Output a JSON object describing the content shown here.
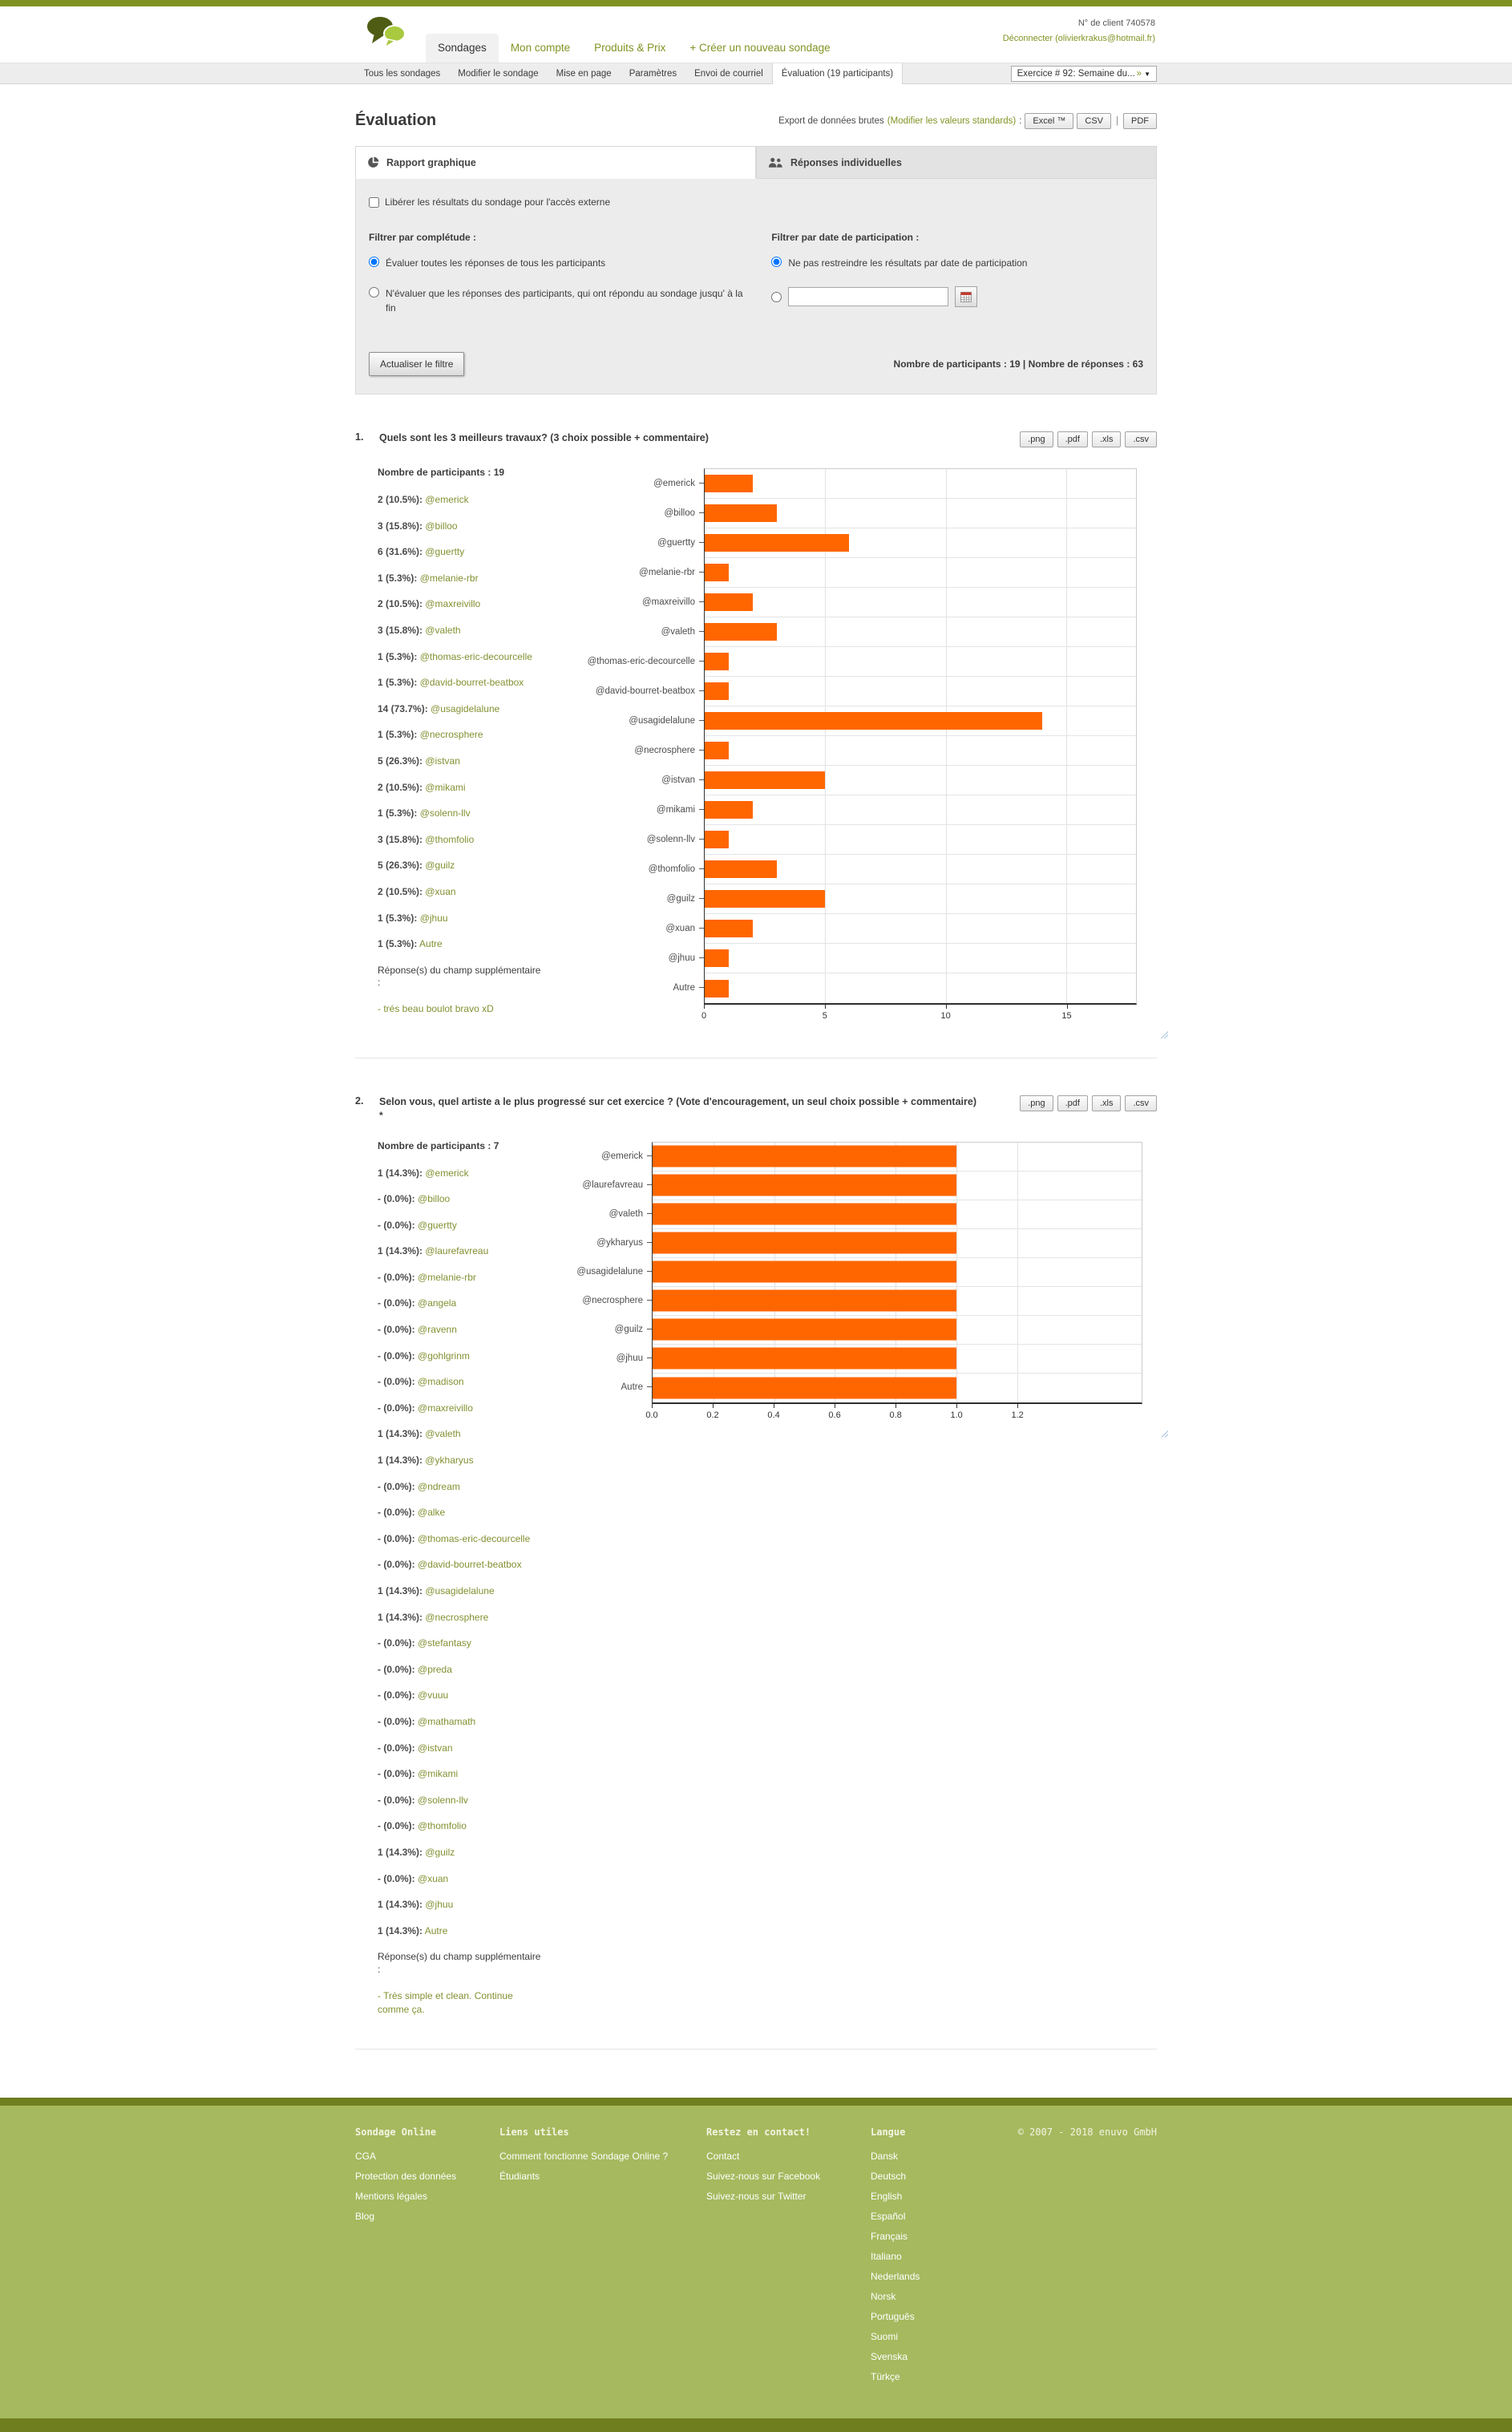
{
  "header": {
    "client_number": "N° de client 740578",
    "logout": "Déconnecter (olivierkrakus@hotmail.fr)",
    "nav": [
      {
        "label": "Sondages",
        "active": true
      },
      {
        "label": "Mon compte",
        "active": false
      },
      {
        "label": "Produits & Prix",
        "active": false
      },
      {
        "label": "+ Créer un nouveau sondage",
        "active": false
      }
    ]
  },
  "subnav": {
    "tabs": [
      "Tous les sondages",
      "Modifier le sondage",
      "Mise en page",
      "Paramètres",
      "Envoi de courriel",
      "Évaluation (19 participants)"
    ],
    "active_tab": "Évaluation (19 participants)",
    "survey_select_label": "Exercice # 92: Semaine du...",
    "survey_select_more": "»"
  },
  "page": {
    "title": "Évaluation",
    "export_label": "Export de données brutes",
    "export_link": "(Modifier les valeurs standards)",
    "export_colon": ":",
    "export_excel": "Excel ™",
    "export_csv": "CSV",
    "export_sep": "|",
    "export_pdf": "PDF"
  },
  "report_tabs": {
    "graph": "Rapport graphique",
    "individual": "Réponses individuelles"
  },
  "filters": {
    "release_checkbox": "Libérer les résultats du sondage pour l'accès externe",
    "completeness_label": "Filtrer par complétude :",
    "completeness_option1": "Évaluer toutes les réponses de tous les participants",
    "completeness_option2": "N'évaluer que les réponses des participants, qui ont répondu au sondage jusqu' à la fin",
    "date_label": "Filtrer par date de participation :",
    "date_option1": "Ne pas restreindre les résultats par date de participation",
    "refresh_button": "Actualiser le filtre",
    "stats": "Nombre de participants : 19 | Nombre de réponses : 63"
  },
  "questions": [
    {
      "number": "1.",
      "title": "Quels sont les 3 meilleurs travaux? (3 choix possible + commentaire)",
      "star": "",
      "participants": "Nombre de participants : 19",
      "export_buttons": [
        ".png",
        ".pdf",
        ".xls",
        ".csv"
      ],
      "stats": [
        {
          "count": "2 (10.5%):",
          "name": "@emerick"
        },
        {
          "count": "3 (15.8%):",
          "name": "@billoo"
        },
        {
          "count": "6 (31.6%):",
          "name": "@guertty"
        },
        {
          "count": "1 (5.3%):",
          "name": "@melanie-rbr"
        },
        {
          "count": "2 (10.5%):",
          "name": "@maxreivillo"
        },
        {
          "count": "3 (15.8%):",
          "name": "@valeth"
        },
        {
          "count": "1 (5.3%):",
          "name": "@thomas-eric-decourcelle"
        },
        {
          "count": "1 (5.3%):",
          "name": "@david-bourret-beatbox"
        },
        {
          "count": "14 (73.7%):",
          "name": "@usagidelalune"
        },
        {
          "count": "1 (5.3%):",
          "name": "@necrosphere"
        },
        {
          "count": "5 (26.3%):",
          "name": "@istvan"
        },
        {
          "count": "2 (10.5%):",
          "name": "@mikami"
        },
        {
          "count": "1 (5.3%):",
          "name": "@solenn-llv"
        },
        {
          "count": "3 (15.8%):",
          "name": "@thomfolio"
        },
        {
          "count": "5 (26.3%):",
          "name": "@guilz"
        },
        {
          "count": "2 (10.5%):",
          "name": "@xuan"
        },
        {
          "count": "1 (5.3%):",
          "name": "@jhuu"
        },
        {
          "count": "1 (5.3%):",
          "name": "Autre"
        }
      ],
      "supplement_label": "Réponse(s) du champ supplémentaire\n:",
      "supplement_answer": "- trés beau boulot bravo xD"
    },
    {
      "number": "2.",
      "title": "Selon vous, quel artiste a le plus progressé sur cet exercice ? (Vote d'encouragement, un seul choix possible + commentaire)",
      "star": "*",
      "participants": "Nombre de participants : 7",
      "export_buttons": [
        ".png",
        ".pdf",
        ".xls",
        ".csv"
      ],
      "stats": [
        {
          "count": "1 (14.3%):",
          "name": "@emerick"
        },
        {
          "count": "- (0.0%):",
          "name": "@billoo"
        },
        {
          "count": "- (0.0%):",
          "name": "@guertty"
        },
        {
          "count": "1 (14.3%):",
          "name": "@laurefavreau"
        },
        {
          "count": "- (0.0%):",
          "name": "@melanie-rbr"
        },
        {
          "count": "- (0.0%):",
          "name": "@angela"
        },
        {
          "count": "- (0.0%):",
          "name": "@ravenn"
        },
        {
          "count": "- (0.0%):",
          "name": "@gohlgrinm"
        },
        {
          "count": "- (0.0%):",
          "name": "@madison"
        },
        {
          "count": "- (0.0%):",
          "name": "@maxreivillo"
        },
        {
          "count": "1 (14.3%):",
          "name": "@valeth"
        },
        {
          "count": "1 (14.3%):",
          "name": "@ykharyus"
        },
        {
          "count": "- (0.0%):",
          "name": "@ndream"
        },
        {
          "count": "- (0.0%):",
          "name": "@alke"
        },
        {
          "count": "- (0.0%):",
          "name": "@thomas-eric-decourcelle"
        },
        {
          "count": "- (0.0%):",
          "name": "@david-bourret-beatbox"
        },
        {
          "count": "1 (14.3%):",
          "name": "@usagidelalune"
        },
        {
          "count": "1 (14.3%):",
          "name": "@necrosphere"
        },
        {
          "count": "- (0.0%):",
          "name": "@stefantasy"
        },
        {
          "count": "- (0.0%):",
          "name": "@preda"
        },
        {
          "count": "- (0.0%):",
          "name": "@vuuu"
        },
        {
          "count": "- (0.0%):",
          "name": "@mathamath"
        },
        {
          "count": "- (0.0%):",
          "name": "@istvan"
        },
        {
          "count": "- (0.0%):",
          "name": "@mikami"
        },
        {
          "count": "- (0.0%):",
          "name": "@solenn-llv"
        },
        {
          "count": "- (0.0%):",
          "name": "@thomfolio"
        },
        {
          "count": "1 (14.3%):",
          "name": "@guilz"
        },
        {
          "count": "- (0.0%):",
          "name": "@xuan"
        },
        {
          "count": "1 (14.3%):",
          "name": "@jhuu"
        },
        {
          "count": "1 (14.3%):",
          "name": "Autre"
        }
      ],
      "supplement_label": "Réponse(s) du champ supplémentaire\n:",
      "supplement_answer": "- Très simple et clean. Continue comme ça."
    }
  ],
  "chart_data": [
    {
      "type": "bar",
      "orientation": "horizontal",
      "title": "",
      "categories": [
        "@emerick",
        "@billoo",
        "@guertty",
        "@melanie-rbr",
        "@maxreivillo",
        "@valeth",
        "@thomas-eric-decourcelle",
        "@david-bourret-beatbox",
        "@usagidelalune",
        "@necrosphere",
        "@istvan",
        "@mikami",
        "@solenn-llv",
        "@thomfolio",
        "@guilz",
        "@xuan",
        "@jhuu",
        "Autre"
      ],
      "values": [
        2,
        3,
        6,
        1,
        2,
        3,
        1,
        1,
        14,
        1,
        5,
        2,
        1,
        3,
        5,
        2,
        1,
        1
      ],
      "xlabel": "",
      "ylabel": "",
      "xlim": [
        0,
        17.9
      ],
      "xticks": [
        0,
        5,
        10,
        15
      ],
      "xtick_labels": [
        "0",
        "5",
        "10",
        "15"
      ],
      "grid": true,
      "bar_color": "#ff6600"
    },
    {
      "type": "bar",
      "orientation": "horizontal",
      "title": "",
      "categories": [
        "@emerick",
        "@laurefavreau",
        "@valeth",
        "@ykharyus",
        "@usagidelalune",
        "@necrosphere",
        "@guilz",
        "@jhuu",
        "Autre"
      ],
      "values": [
        1.0,
        1.0,
        1.0,
        1.0,
        1.0,
        1.0,
        1.0,
        1.0,
        1.0
      ],
      "xlabel": "",
      "ylabel": "",
      "xlim": [
        0,
        1.61
      ],
      "xticks": [
        0,
        0.2,
        0.4,
        0.6,
        0.8,
        1.0,
        1.2
      ],
      "xtick_labels": [
        "0.0",
        "0.2",
        "0.4",
        "0.6",
        "0.8",
        "1.0",
        "1.2"
      ],
      "grid": true,
      "bar_color": "#ff6600"
    }
  ],
  "footer": {
    "columns": [
      {
        "title": "Sondage Online",
        "links": [
          "CGA",
          "Protection des données",
          "Mentions légales",
          "Blog"
        ]
      },
      {
        "title": "Liens utiles",
        "links": [
          "Comment fonctionne Sondage Online ?",
          "Étudiants"
        ]
      },
      {
        "title": "Restez en contact!",
        "links": [
          "Contact",
          "Suivez-nous sur Facebook",
          "Suivez-nous sur Twitter"
        ]
      },
      {
        "title": "Langue",
        "links": [
          "Dansk",
          "Deutsch",
          "English",
          "Español",
          "Français",
          "Italiano",
          "Nederlands",
          "Norsk",
          "Português",
          "Suomi",
          "Svenska",
          "Türkçe"
        ]
      }
    ],
    "copyright": "© 2007 - 2018 enuvo GmbH"
  },
  "colors": {
    "accent_olive": "#7f9222",
    "link_olive": "#849032",
    "bar_orange": "#ff6600",
    "footer_bg": "#a6b95e",
    "footer_strip": "#6f7e1f"
  }
}
